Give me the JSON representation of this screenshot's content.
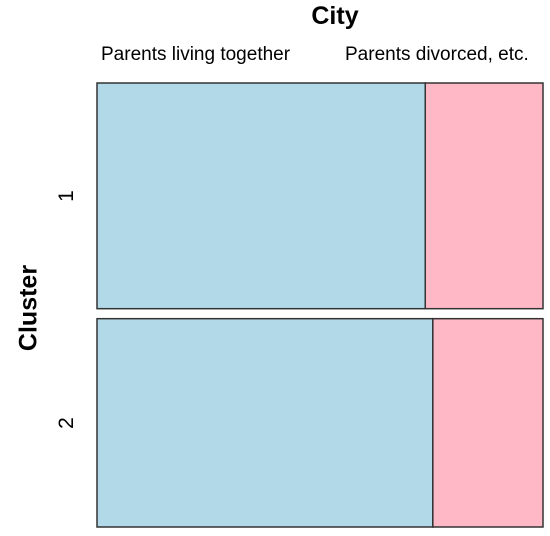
{
  "chart_data": {
    "type": "mosaic",
    "title": "City",
    "ylabel": "Cluster",
    "columns": [
      "Parents living together",
      "Parents divorced, etc."
    ],
    "rows": [
      {
        "label": "1",
        "proportions": [
          0.736,
          0.264
        ],
        "weight": 0.52
      },
      {
        "label": "2",
        "proportions": [
          0.753,
          0.247
        ],
        "weight": 0.48
      }
    ],
    "colors": [
      "#b2d9e8",
      "#ffb8c6"
    ],
    "border_color": "#333333"
  }
}
